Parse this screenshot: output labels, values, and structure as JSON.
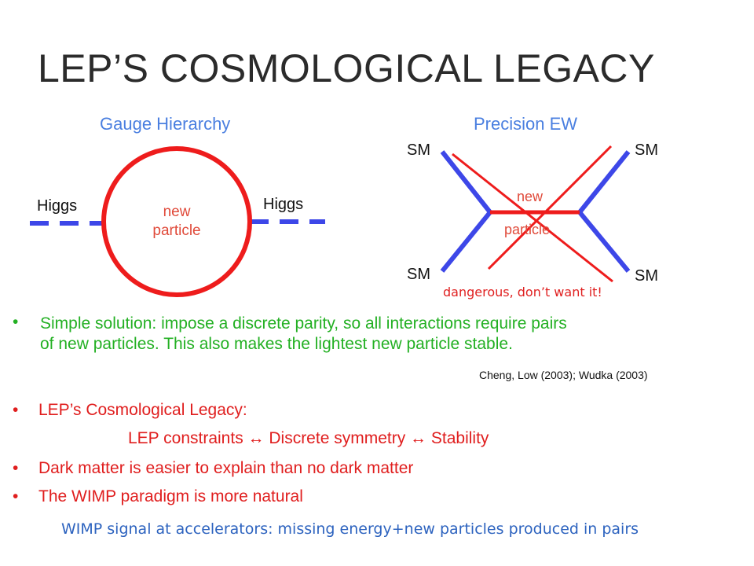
{
  "slide": {
    "title": "LEP’S COSMOLOGICAL LEGACY"
  },
  "left_diagram": {
    "title": "Gauge Hierarchy",
    "higgs_left": "Higgs",
    "higgs_right": "Higgs",
    "center_line1": "new",
    "center_line2": "particle",
    "colors": {
      "line": "#3d47e8",
      "circle": "#ee1c1c",
      "label": "#e04a3a"
    }
  },
  "right_diagram": {
    "title": "Precision EW",
    "sm_top_left": "SM",
    "sm_top_right": "SM",
    "sm_bottom_left": "SM",
    "sm_bottom_right": "SM",
    "center_line1": "new",
    "center_line2": "particle",
    "annotation": "dangerous, don’t want it!",
    "colors": {
      "sm_lines": "#3d47e8",
      "propagator": "#ee1c1c",
      "cross": "#ee1c1c"
    }
  },
  "bullets_green": {
    "bullet": "•",
    "line1": "Simple solution: impose a discrete parity, so all interactions require pairs",
    "line2": "of new particles.  This also makes the lightest new particle stable.",
    "citation": "Cheng, Low (2003); Wudka (2003)"
  },
  "bullets_red": {
    "items": [
      {
        "bullet": "•",
        "text": "LEP’s Cosmological Legacy:"
      },
      {
        "bullet": "",
        "text": "LEP constraints ↔ Discrete symmetry ↔ Stability"
      },
      {
        "bullet": "•",
        "text": "Dark matter is easier to explain than no dark matter"
      },
      {
        "bullet": "•",
        "text": "The WIMP paradigm is more natural"
      }
    ]
  },
  "footer": {
    "text": "WIMP signal at accelerators: missing energy+new particles produced in pairs"
  }
}
